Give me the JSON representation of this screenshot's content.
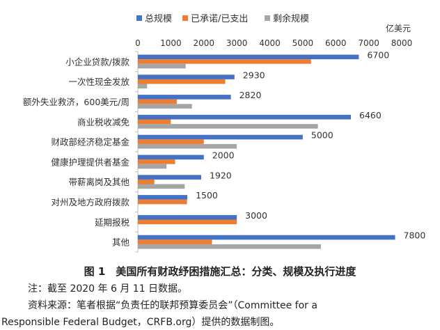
{
  "chart_data": {
    "type": "bar",
    "orientation": "horizontal",
    "unit_label": "亿美元",
    "categories": [
      "小企业贷款/拨款",
      "一次性现金发放",
      "额外失业救济，600美元/周",
      "商业税收减免",
      "财政部经济稳定基金",
      "健康护理提供者基金",
      "带薪离岗及其他",
      "对州及地方政府拨款",
      "延期报税",
      "其他"
    ],
    "series": [
      {
        "name": "总规模",
        "color": "#4472C4",
        "values": [
          6700,
          2930,
          2820,
          6460,
          5000,
          2000,
          1920,
          1500,
          3000,
          7800
        ]
      },
      {
        "name": "已承诺/已支出",
        "color": "#ED7D31",
        "values": [
          5250,
          2650,
          1180,
          1000,
          2000,
          1130,
          500,
          1490,
          3000,
          2250
        ]
      },
      {
        "name": "剩余规模",
        "color": "#A5A5A5",
        "values": [
          1450,
          280,
          1640,
          5460,
          3000,
          870,
          1420,
          10,
          0,
          5550
        ]
      }
    ],
    "data_labels": [
      "6700",
      "2930",
      "2820",
      "6460",
      "5000",
      "2000",
      "1920",
      "1500",
      "3000",
      "7800"
    ],
    "xlim": [
      0,
      8000
    ],
    "xticks": [
      "0",
      "1000",
      "2000",
      "3000",
      "4000",
      "5000",
      "6000",
      "7000",
      "8000"
    ],
    "legend_position": "top",
    "grid": false
  },
  "caption": "图 1　美国所有财政纾困措施汇总：分类、规模及执行进度",
  "note": "注：截至 2020 年 6 月 11 日数据。",
  "source_line1": "资料来源：笔者根据“负责任的联邦预算委员会”（Committee for a",
  "source_line2": "Responsible Federal Budget，CRFB.org）提供的数据制图。"
}
